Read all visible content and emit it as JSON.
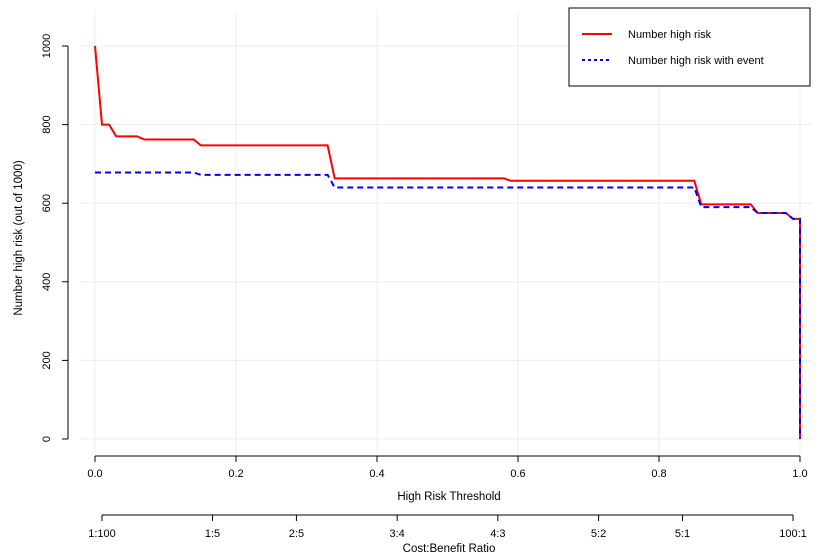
{
  "chart_data": {
    "type": "line",
    "title": "",
    "xlabel": "High Risk Threshold",
    "ylabel": "Number high risk (out of 1000)",
    "xlim": [
      0,
      1
    ],
    "ylim": [
      0,
      1000
    ],
    "grid": true,
    "legend_position": "top-right",
    "x_ticks": [
      0.0,
      0.2,
      0.4,
      0.6,
      0.8,
      1.0
    ],
    "x_tick_labels": [
      "0.0",
      "0.2",
      "0.4",
      "0.6",
      "0.8",
      "1.0"
    ],
    "y_ticks": [
      0,
      200,
      400,
      600,
      800,
      1000
    ],
    "y_tick_labels": [
      "0",
      "200",
      "400",
      "600",
      "800",
      "1000"
    ],
    "secondary_axis": {
      "label": "Cost:Benefit Ratio",
      "ticks": [
        0.0099,
        0.1667,
        0.2857,
        0.4286,
        0.5714,
        0.7143,
        0.8333,
        0.9901
      ],
      "tick_labels": [
        "1:100",
        "1:5",
        "2:5",
        "3:4",
        "4:3",
        "5:2",
        "5:1",
        "100:1"
      ]
    },
    "series": [
      {
        "name": "Number high risk",
        "color": "#ff0000",
        "style": "solid",
        "points": [
          [
            0.0,
            1000
          ],
          [
            0.01,
            800
          ],
          [
            0.02,
            800
          ],
          [
            0.03,
            770
          ],
          [
            0.06,
            770
          ],
          [
            0.07,
            762
          ],
          [
            0.14,
            762
          ],
          [
            0.15,
            747
          ],
          [
            0.33,
            747
          ],
          [
            0.34,
            663
          ],
          [
            0.58,
            663
          ],
          [
            0.59,
            657
          ],
          [
            0.85,
            657
          ],
          [
            0.86,
            597
          ],
          [
            0.93,
            597
          ],
          [
            0.94,
            575
          ],
          [
            0.98,
            575
          ],
          [
            0.99,
            560
          ],
          [
            1.0,
            560
          ],
          [
            1.0,
            0
          ]
        ]
      },
      {
        "name": "Number high risk with event",
        "color": "#0000ff",
        "style": "dashed",
        "points": [
          [
            0.0,
            678
          ],
          [
            0.14,
            678
          ],
          [
            0.15,
            672
          ],
          [
            0.33,
            672
          ],
          [
            0.34,
            640
          ],
          [
            0.85,
            640
          ],
          [
            0.86,
            590
          ],
          [
            0.93,
            590
          ],
          [
            0.94,
            575
          ],
          [
            0.98,
            575
          ],
          [
            0.99,
            560
          ],
          [
            1.0,
            560
          ],
          [
            1.0,
            0
          ]
        ]
      }
    ]
  }
}
